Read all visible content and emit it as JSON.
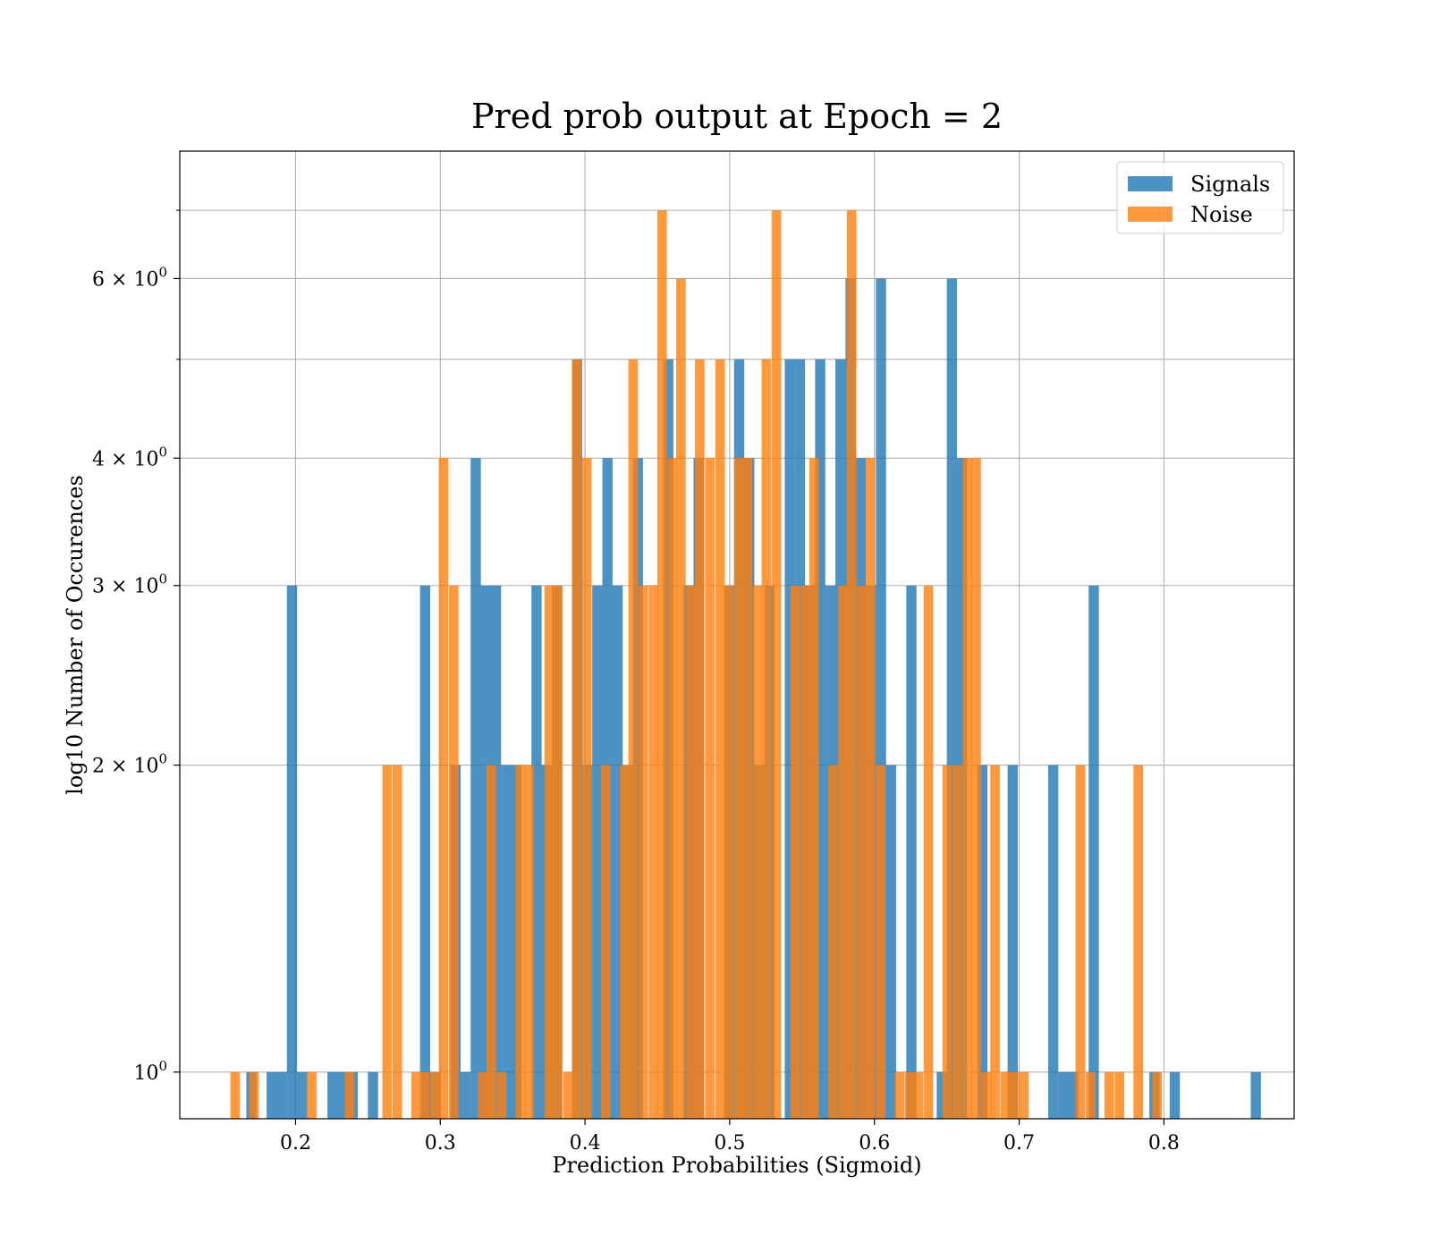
{
  "chart_data": {
    "type": "bar",
    "title": "Pred prob output at Epoch = 2",
    "xlabel": "Prediction Probabilities (Sigmoid)",
    "ylabel": "log10 Number of Occurences",
    "y_scale": "log",
    "xlim": [
      0.12,
      0.89
    ],
    "ylim": [
      0.9,
      8.0
    ],
    "grid": true,
    "legend_position": "top-right",
    "x_ticks": [
      {
        "value": 0.2,
        "label": "0.2"
      },
      {
        "value": 0.3,
        "label": "0.3"
      },
      {
        "value": 0.4,
        "label": "0.4"
      },
      {
        "value": 0.5,
        "label": "0.5"
      },
      {
        "value": 0.6,
        "label": "0.6"
      },
      {
        "value": 0.7,
        "label": "0.7"
      },
      {
        "value": 0.8,
        "label": "0.8"
      }
    ],
    "y_ticks": [
      {
        "value": 1,
        "base": "10",
        "exp": "0"
      },
      {
        "value": 2,
        "base": "2 × 10",
        "exp": "0"
      },
      {
        "value": 3,
        "base": "3 × 10",
        "exp": "0"
      },
      {
        "value": 4,
        "base": "4 × 10",
        "exp": "0"
      },
      {
        "value": 6,
        "base": "6 × 10",
        "exp": "0"
      }
    ],
    "y_minor_grid": [
      5,
      7
    ],
    "series": [
      {
        "name": "Signals",
        "color": "#1f77b4",
        "bin_width": 0.00705,
        "bins": [
          [
            0.166,
            1
          ],
          [
            0.18,
            1
          ],
          [
            0.187,
            1
          ],
          [
            0.194,
            3
          ],
          [
            0.201,
            1
          ],
          [
            0.222,
            1
          ],
          [
            0.229,
            1
          ],
          [
            0.236,
            1
          ],
          [
            0.25,
            1
          ],
          [
            0.286,
            3
          ],
          [
            0.293,
            1
          ],
          [
            0.307,
            2
          ],
          [
            0.314,
            1
          ],
          [
            0.321,
            4
          ],
          [
            0.328,
            3
          ],
          [
            0.335,
            3
          ],
          [
            0.342,
            2
          ],
          [
            0.349,
            2
          ],
          [
            0.363,
            3
          ],
          [
            0.37,
            2
          ],
          [
            0.377,
            3
          ],
          [
            0.391,
            5
          ],
          [
            0.398,
            2
          ],
          [
            0.405,
            3
          ],
          [
            0.412,
            4
          ],
          [
            0.419,
            3
          ],
          [
            0.426,
            2
          ],
          [
            0.433,
            4
          ],
          [
            0.454,
            5
          ],
          [
            0.468,
            3
          ],
          [
            0.475,
            4
          ],
          [
            0.496,
            3
          ],
          [
            0.503,
            5
          ],
          [
            0.51,
            4
          ],
          [
            0.517,
            2
          ],
          [
            0.524,
            3
          ],
          [
            0.538,
            5
          ],
          [
            0.545,
            5
          ],
          [
            0.552,
            3
          ],
          [
            0.559,
            5
          ],
          [
            0.566,
            3
          ],
          [
            0.573,
            5
          ],
          [
            0.58,
            6
          ],
          [
            0.587,
            4
          ],
          [
            0.594,
            3
          ],
          [
            0.601,
            6
          ],
          [
            0.608,
            2
          ],
          [
            0.622,
            3
          ],
          [
            0.643,
            1
          ],
          [
            0.65,
            6
          ],
          [
            0.657,
            4
          ],
          [
            0.671,
            2
          ],
          [
            0.692,
            2
          ],
          [
            0.72,
            2
          ],
          [
            0.727,
            1
          ],
          [
            0.734,
            1
          ],
          [
            0.748,
            3
          ],
          [
            0.79,
            1
          ],
          [
            0.804,
            1
          ],
          [
            0.86,
            1
          ]
        ]
      },
      {
        "name": "Noise",
        "color": "#ff7f0e",
        "bin_width": 0.0066,
        "bins": [
          [
            0.155,
            1
          ],
          [
            0.168,
            1
          ],
          [
            0.208,
            1
          ],
          [
            0.234,
            1
          ],
          [
            0.26,
            2
          ],
          [
            0.267,
            2
          ],
          [
            0.28,
            1
          ],
          [
            0.286,
            1
          ],
          [
            0.293,
            1
          ],
          [
            0.299,
            4
          ],
          [
            0.306,
            3
          ],
          [
            0.326,
            1
          ],
          [
            0.332,
            2
          ],
          [
            0.339,
            1
          ],
          [
            0.352,
            2
          ],
          [
            0.358,
            2
          ],
          [
            0.372,
            3
          ],
          [
            0.378,
            3
          ],
          [
            0.385,
            1
          ],
          [
            0.391,
            5
          ],
          [
            0.398,
            4
          ],
          [
            0.411,
            2
          ],
          [
            0.424,
            2
          ],
          [
            0.43,
            5
          ],
          [
            0.437,
            3
          ],
          [
            0.444,
            3
          ],
          [
            0.45,
            7
          ],
          [
            0.457,
            4
          ],
          [
            0.463,
            6
          ],
          [
            0.47,
            3
          ],
          [
            0.476,
            5
          ],
          [
            0.483,
            4
          ],
          [
            0.49,
            5
          ],
          [
            0.496,
            3
          ],
          [
            0.503,
            4
          ],
          [
            0.509,
            4
          ],
          [
            0.516,
            3
          ],
          [
            0.522,
            5
          ],
          [
            0.529,
            7
          ],
          [
            0.542,
            3
          ],
          [
            0.549,
            3
          ],
          [
            0.555,
            4
          ],
          [
            0.568,
            2
          ],
          [
            0.575,
            3
          ],
          [
            0.581,
            7
          ],
          [
            0.588,
            3
          ],
          [
            0.594,
            4
          ],
          [
            0.601,
            2
          ],
          [
            0.614,
            1
          ],
          [
            0.621,
            1
          ],
          [
            0.627,
            1
          ],
          [
            0.634,
            3
          ],
          [
            0.647,
            2
          ],
          [
            0.654,
            2
          ],
          [
            0.661,
            4
          ],
          [
            0.667,
            4
          ],
          [
            0.674,
            1
          ],
          [
            0.68,
            2
          ],
          [
            0.687,
            1
          ],
          [
            0.693,
            1
          ],
          [
            0.7,
            1
          ],
          [
            0.739,
            2
          ],
          [
            0.746,
            1
          ],
          [
            0.759,
            1
          ],
          [
            0.766,
            1
          ],
          [
            0.779,
            2
          ],
          [
            0.792,
            1
          ]
        ]
      }
    ]
  }
}
